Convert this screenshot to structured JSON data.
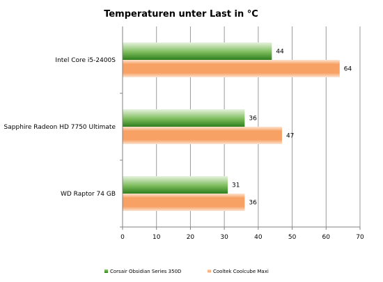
{
  "chart_data": {
    "type": "bar",
    "orientation": "horizontal",
    "title": "Temperaturen unter Last in °C",
    "categories": [
      "Intel Core i5-2400S",
      "Sapphire Radeon HD 7750 Ultimate",
      "WD Raptor 74 GB"
    ],
    "series": [
      {
        "name": "Corsair Obsidian Series 350D",
        "values": [
          44,
          36,
          31
        ],
        "color": "#3f8f2a"
      },
      {
        "name": "Cooltek Coolcube Maxi",
        "values": [
          64,
          47,
          36
        ],
        "color": "#f7a46a"
      }
    ],
    "xlim": [
      0,
      70
    ],
    "xticks": [
      0,
      10,
      20,
      30,
      40,
      50,
      60,
      70
    ],
    "grid": true,
    "legend": "bottom"
  }
}
